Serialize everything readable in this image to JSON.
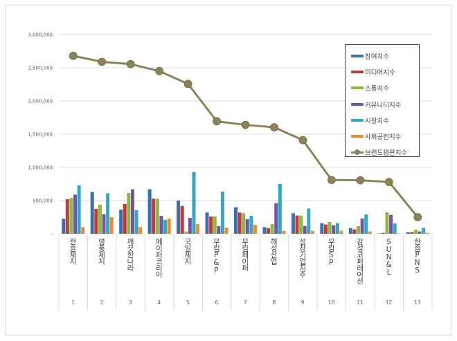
{
  "chart_data": {
    "type": "bar",
    "title": "",
    "xlabel": "",
    "ylabel": "",
    "ylim": [
      0,
      3000000
    ],
    "yticks": [
      "-",
      "500,000",
      "1,000,000",
      "1,500,000",
      "2,000,000",
      "2,500,000",
      "3,000,000"
    ],
    "grid": true,
    "legend_position": "top-right",
    "categories": [
      "한솔제지",
      "영풍제지",
      "깨끗한나라",
      "페이퍼코리아",
      "국일제지",
      "무림P&P",
      "무림페이퍼",
      "해성산업",
      "성창기업지주",
      "무림SP",
      "감성코퍼레이션",
      "SUN&L",
      "한솔PNS"
    ],
    "ranks": [
      "1",
      "2",
      "3",
      "4",
      "5",
      "6",
      "7",
      "8",
      "9",
      "10",
      "11",
      "12",
      "13"
    ],
    "series": [
      {
        "name": "참여지수",
        "type": "bar",
        "color": "#3a6fb0",
        "values": [
          226000,
          630000,
          365000,
          670000,
          500000,
          320000,
          400000,
          100000,
          310000,
          160000,
          83000,
          5000,
          24000
        ]
      },
      {
        "name": "미디어지수",
        "type": "bar",
        "color": "#c0393b",
        "values": [
          520000,
          375000,
          450000,
          530000,
          420000,
          260000,
          320000,
          83000,
          275000,
          140000,
          66000,
          14000,
          24000
        ]
      },
      {
        "name": "소통지수",
        "type": "bar",
        "color": "#8db843",
        "values": [
          540000,
          440000,
          615000,
          530000,
          35000,
          260000,
          310000,
          146000,
          275000,
          177000,
          115000,
          323000,
          62000
        ]
      },
      {
        "name": "커뮤니티지수",
        "type": "bar",
        "color": "#7753a0",
        "values": [
          590000,
          295000,
          670000,
          270000,
          240000,
          115000,
          220000,
          460000,
          118000,
          128000,
          230000,
          285000,
          35000
        ]
      },
      {
        "name": "시장지수",
        "type": "bar",
        "color": "#2fa8c4",
        "values": [
          730000,
          610000,
          355000,
          210000,
          930000,
          635000,
          270000,
          750000,
          380000,
          160000,
          290000,
          156000,
          90000
        ]
      },
      {
        "name": "사회공헌지수",
        "type": "bar",
        "color": "#ef8b2c",
        "values": [
          100000,
          250000,
          100000,
          230000,
          145000,
          94000,
          135000,
          45000,
          45000,
          45000,
          35000,
          7000,
          14000
        ]
      },
      {
        "name": "브랜드평판지수",
        "type": "line",
        "color": "#8c8458",
        "values": [
          2680000,
          2590000,
          2555000,
          2450000,
          2257000,
          1695000,
          1640000,
          1604000,
          1410000,
          810000,
          806000,
          780000,
          250000
        ]
      }
    ]
  }
}
